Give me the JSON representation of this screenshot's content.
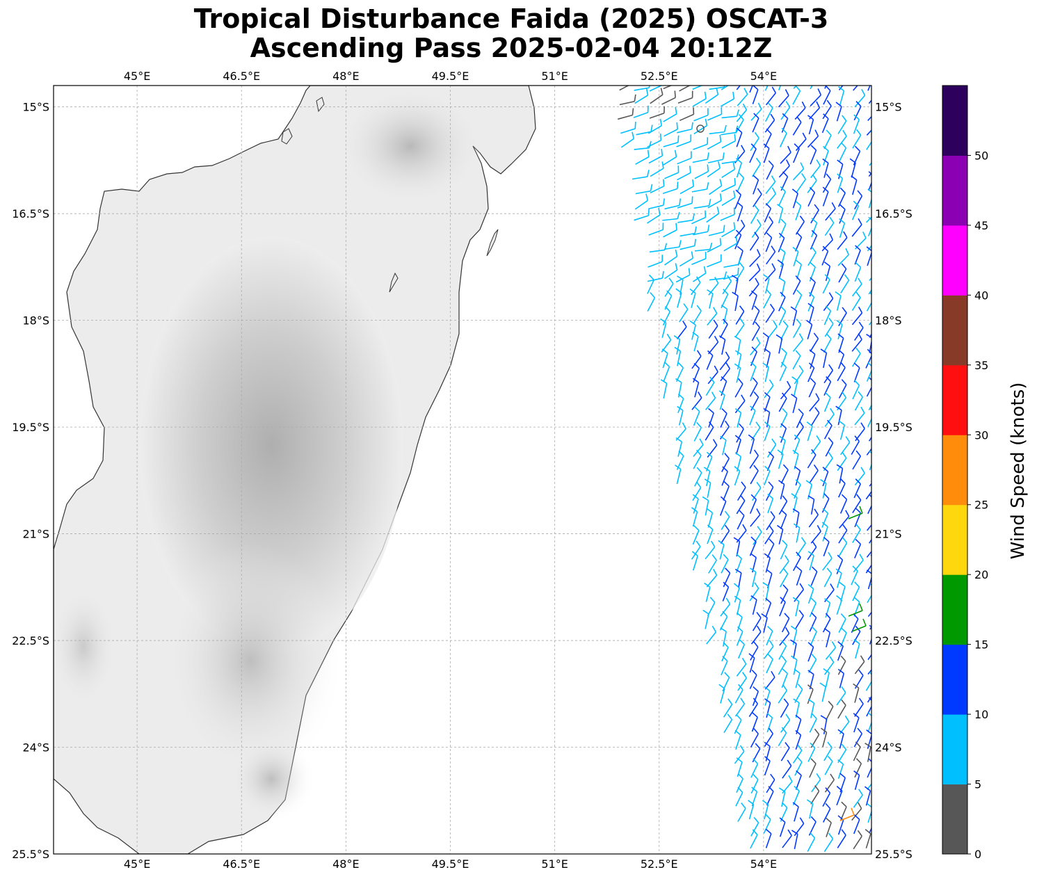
{
  "title": {
    "line1": "Tropical Disturbance Faida (2025) OSCAT-3",
    "line2": "Ascending Pass 2025-02-04 20:12Z"
  },
  "map": {
    "lon_range": [
      43.8,
      55.55
    ],
    "lat_range": [
      -25.5,
      -14.7
    ],
    "lon_ticks": [
      "45°E",
      "46.5°E",
      "48°E",
      "49.5°E",
      "51°E",
      "52.5°E",
      "54°E"
    ],
    "lat_ticks": [
      "15°S",
      "16.5°S",
      "18°S",
      "19.5°S",
      "21°S",
      "22.5°S",
      "24°S",
      "25.5°S"
    ],
    "land_shading": "grayscale topography",
    "gridlines": true
  },
  "wind_barbs": {
    "swath_east_of_lon": 51.3,
    "dominant_speed_class": "5-15 knots",
    "isolated_stronger_barbs": "15-30 knots near 55°E"
  },
  "colorbar": {
    "label": "Wind Speed (knots)",
    "tick_labels": [
      "0",
      "5",
      "10",
      "15",
      "20",
      "25",
      "30",
      "35",
      "40",
      "45",
      "50"
    ],
    "colors": [
      "#575757",
      "#00bfff",
      "#0039ff",
      "#009900",
      "#ffd70f",
      "#ff8c0a",
      "#ff0f0f",
      "#873a28",
      "#ff00ff",
      "#8c00b3",
      "#2e005e"
    ]
  }
}
